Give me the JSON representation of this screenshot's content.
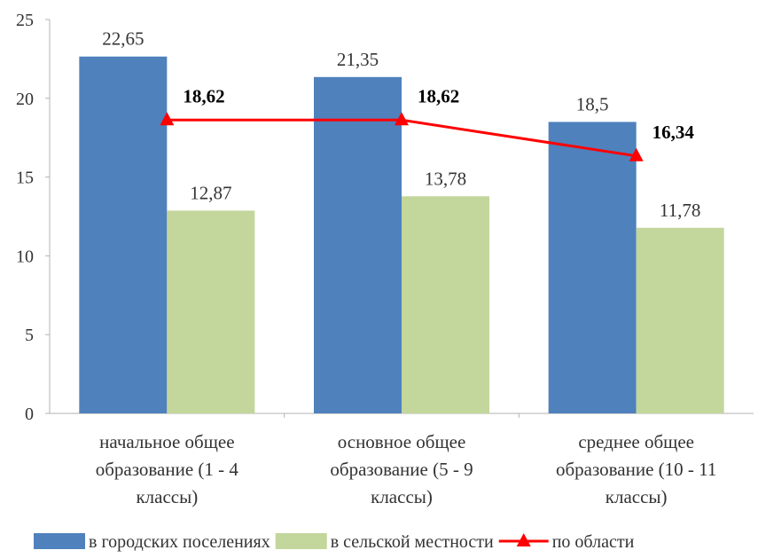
{
  "chart_data": {
    "type": "bar",
    "categories": [
      [
        "начальное общее",
        "образование (1 - 4",
        "классы)"
      ],
      [
        "основное общее",
        "образование (5 - 9",
        "классы)"
      ],
      [
        "среднее общее",
        "образование (10 - 11",
        "классы)"
      ]
    ],
    "series": [
      {
        "name": "в городских поселениях",
        "type": "bar",
        "color": "#4F81BD",
        "values": [
          22.65,
          21.35,
          18.5
        ],
        "labels": [
          "22,65",
          "21,35",
          "18,5"
        ]
      },
      {
        "name": "в сельской местности",
        "type": "bar",
        "color": "#C3D69B",
        "values": [
          12.87,
          13.78,
          11.78
        ],
        "labels": [
          "12,87",
          "13,78",
          "11,78"
        ]
      },
      {
        "name": "по области",
        "type": "line",
        "marker": "triangle",
        "color": "#FF0000",
        "values": [
          18.62,
          18.62,
          16.34
        ],
        "labels": [
          "18,62",
          "18,62",
          "16,34"
        ]
      }
    ],
    "yticks": [
      "0",
      "5",
      "10",
      "15",
      "20",
      "25"
    ],
    "ylim": [
      0,
      25
    ],
    "grid": false,
    "legend": "bottom"
  }
}
